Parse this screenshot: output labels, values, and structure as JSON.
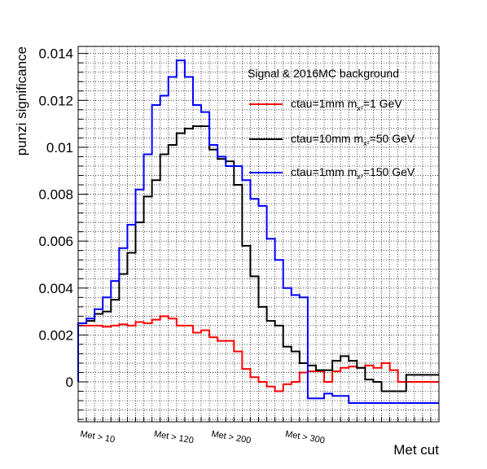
{
  "chart_data": {
    "type": "line",
    "style": "step-histogram",
    "title": "",
    "xlabel": "Met cut",
    "ylabel": "punzi significance",
    "ylim": [
      -0.0017,
      0.0143
    ],
    "nbins": 44,
    "grid": true,
    "legend_position": "top-right",
    "legend_header": "Signal & 2016MC background",
    "x_tick_labels": [
      "Met > 10",
      "Met > 120",
      "Met > 200",
      "Met > 300"
    ],
    "x_tick_bins": [
      0,
      9,
      16,
      25
    ],
    "y_ticks": [
      0,
      0.002,
      0.004,
      0.006,
      0.008,
      0.01,
      0.012,
      0.014
    ],
    "y_tick_labels": [
      "0",
      "0.002",
      "0.004",
      "0.006",
      "0.008",
      "0.01",
      "0.012",
      "0.014"
    ],
    "series": [
      {
        "name": "ctau=1mm m",
        "name_sub": "x²",
        "name_tail": "=1 GeV",
        "color": "#ff0000",
        "values": [
          0.0024,
          0.0024,
          0.0024,
          0.00235,
          0.0024,
          0.00245,
          0.0024,
          0.00255,
          0.0025,
          0.00265,
          0.0028,
          0.0027,
          0.0024,
          0.0024,
          0.0021,
          0.0022,
          0.0019,
          0.00175,
          0.00175,
          0.0013,
          0.00055,
          0.0002,
          0.0,
          -0.0002,
          -0.0004,
          -0.0001,
          0.0,
          0.0004,
          0.00045,
          0.00045,
          0.0,
          0.00045,
          0.0006,
          0.00065,
          0.0006,
          0.0007,
          0.0006,
          0.0008,
          0.0005,
          0.0,
          0.0,
          0.0,
          0.0,
          0.0
        ]
      },
      {
        "name": "ctau=10mm m",
        "name_sub": "x²",
        "name_tail": "=50 GeV",
        "color": "#000000",
        "values": [
          0.0025,
          0.0026,
          0.0029,
          0.003,
          0.0035,
          0.0046,
          0.0055,
          0.0068,
          0.0079,
          0.0086,
          0.0097,
          0.0101,
          0.0106,
          0.0108,
          0.0109,
          0.0109,
          0.0099,
          0.0095,
          0.0094,
          0.0084,
          0.0058,
          0.0045,
          0.0032,
          0.0026,
          0.0024,
          0.0015,
          0.0013,
          0.0008,
          0.0007,
          0.0005,
          0.0005,
          0.0009,
          0.0011,
          0.0009,
          0.0006,
          0.0001,
          0.0,
          -0.0004,
          -0.0004,
          -0.0004,
          0.0003,
          0.0003,
          0.0003,
          0.0003
        ]
      },
      {
        "name": "ctau=1mm m",
        "name_sub": "x²",
        "name_tail": "=150 GeV",
        "color": "#0000ff",
        "values": [
          0.0025,
          0.0027,
          0.0031,
          0.0036,
          0.0043,
          0.0057,
          0.0067,
          0.0082,
          0.0097,
          0.0118,
          0.0122,
          0.013,
          0.0137,
          0.013,
          0.0118,
          0.0115,
          0.0101,
          0.0096,
          0.0092,
          0.0092,
          0.0086,
          0.0078,
          0.0075,
          0.0061,
          0.0052,
          0.004,
          0.0037,
          0.0036,
          -0.0007,
          -0.0007,
          -0.0005,
          -0.0006,
          -0.0006,
          -0.0009,
          -0.0009,
          -0.0009,
          -0.0009,
          -0.0009,
          -0.0009,
          -0.0009,
          -0.0009,
          -0.0009,
          -0.0009,
          -0.0009
        ]
      }
    ]
  }
}
